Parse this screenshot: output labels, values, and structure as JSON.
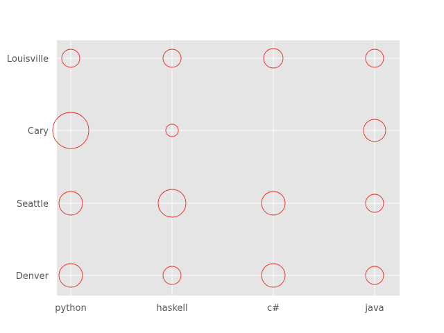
{
  "chart_data": {
    "type": "scatter",
    "x_categories": [
      "python",
      "haskell",
      "c#",
      "java"
    ],
    "y_categories": [
      "Denver",
      "Seattle",
      "Cary",
      "Louisville"
    ],
    "points": [
      {
        "x": "python",
        "y": "Louisville",
        "size": 13
      },
      {
        "x": "haskell",
        "y": "Louisville",
        "size": 13
      },
      {
        "x": "c#",
        "y": "Louisville",
        "size": 14
      },
      {
        "x": "java",
        "y": "Louisville",
        "size": 13
      },
      {
        "x": "python",
        "y": "Cary",
        "size": 26
      },
      {
        "x": "haskell",
        "y": "Cary",
        "size": 9
      },
      {
        "x": "java",
        "y": "Cary",
        "size": 16
      },
      {
        "x": "python",
        "y": "Seattle",
        "size": 17
      },
      {
        "x": "haskell",
        "y": "Seattle",
        "size": 20
      },
      {
        "x": "c#",
        "y": "Seattle",
        "size": 17
      },
      {
        "x": "java",
        "y": "Seattle",
        "size": 13
      },
      {
        "x": "python",
        "y": "Denver",
        "size": 17
      },
      {
        "x": "haskell",
        "y": "Denver",
        "size": 13
      },
      {
        "x": "c#",
        "y": "Denver",
        "size": 17
      },
      {
        "x": "java",
        "y": "Denver",
        "size": 13
      }
    ],
    "size_unit": "radius",
    "grid": true,
    "colors": {
      "background": "#E5E5E5",
      "grid": "#FFFFFF",
      "marker_edge": "#E8261A",
      "tick_label": "#555555"
    }
  }
}
